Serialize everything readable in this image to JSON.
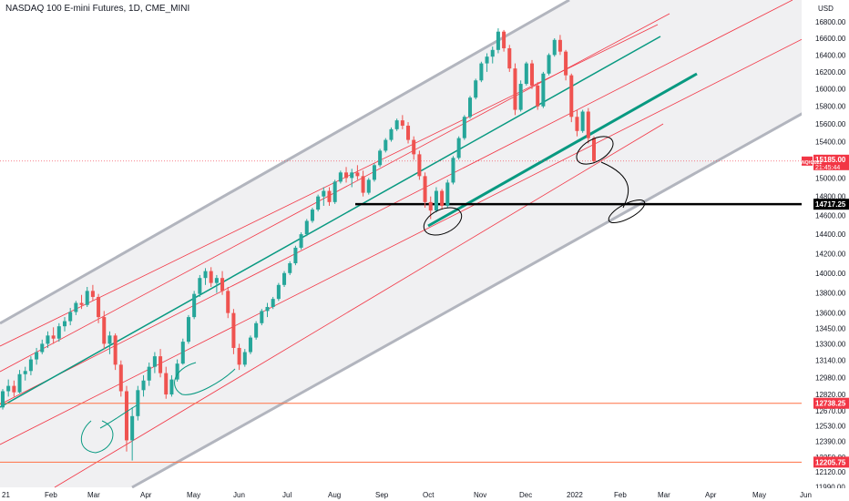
{
  "header": {
    "symbol_title": "NASDAQ 100 E-mini Futures, 1D, CME_MINI",
    "currency": "USD"
  },
  "colors": {
    "up": "#26a69a",
    "down": "#ef5350",
    "channel_outer": "#b2b5be",
    "channel_inner": "#f23645",
    "midline": "#089981",
    "horizontal_red": "#ff7043",
    "support_line": "#000000",
    "price_tag": "#f23645",
    "level_tag_dark": "#000000",
    "level_tag_red": "#f23645",
    "drawing": "#000000",
    "drawing_teal": "#089981"
  },
  "chart_data": {
    "type": "candlestick",
    "x_labels": [
      "21",
      "Feb",
      "Mar",
      "Apr",
      "May",
      "Jun",
      "Jul",
      "Aug",
      "Sep",
      "Oct",
      "Nov",
      "Dec",
      "2022",
      "Feb",
      "Mar",
      "Apr",
      "May",
      "Jun"
    ],
    "y_ticks": [
      "16800.00",
      "16600.00",
      "16400.00",
      "16200.00",
      "16000.00",
      "15800.00",
      "15600.00",
      "15400.00",
      "15000.00",
      "14800.00",
      "14600.00",
      "14400.00",
      "14200.00",
      "14000.00",
      "13800.00",
      "13600.00",
      "13450.00",
      "13300.00",
      "13140.00",
      "12980.00",
      "12820.00",
      "12670.00",
      "12530.00",
      "12390.00",
      "12250.00",
      "12120.00",
      "11990.00"
    ],
    "ylim": [
      11990,
      17000
    ],
    "y_scale": "log",
    "last_price": {
      "symbol": "NQH2022",
      "value": "15185.00",
      "countdown": "21:45:44"
    },
    "levels": [
      {
        "name": "support",
        "value": "14717.25"
      },
      {
        "name": "horizontal-1",
        "value": "12738.25"
      },
      {
        "name": "horizontal-2",
        "value": "12205.75"
      }
    ],
    "candles": [
      [
        12700,
        12870,
        12680,
        12850
      ],
      [
        12850,
        12960,
        12800,
        12900
      ],
      [
        12900,
        12950,
        12800,
        12840
      ],
      [
        12840,
        13050,
        12830,
        13010
      ],
      [
        13010,
        13080,
        12950,
        13040
      ],
      [
        13040,
        13180,
        13000,
        13150
      ],
      [
        13150,
        13260,
        13100,
        13220
      ],
      [
        13220,
        13340,
        13200,
        13300
      ],
      [
        13300,
        13420,
        13260,
        13380
      ],
      [
        13380,
        13460,
        13300,
        13350
      ],
      [
        13350,
        13500,
        13320,
        13470
      ],
      [
        13470,
        13560,
        13420,
        13520
      ],
      [
        13520,
        13650,
        13480,
        13610
      ],
      [
        13610,
        13720,
        13580,
        13700
      ],
      [
        13700,
        13780,
        13640,
        13680
      ],
      [
        13680,
        13860,
        13660,
        13820
      ],
      [
        13820,
        13880,
        13720,
        13760
      ],
      [
        13760,
        13790,
        13500,
        13560
      ],
      [
        13560,
        13620,
        13250,
        13300
      ],
      [
        13300,
        13420,
        13200,
        13380
      ],
      [
        13380,
        13400,
        13050,
        13100
      ],
      [
        13100,
        13140,
        12800,
        12850
      ],
      [
        12850,
        12900,
        12300,
        12400
      ],
      [
        12400,
        12700,
        12220,
        12620
      ],
      [
        12620,
        12900,
        12580,
        12860
      ],
      [
        12860,
        13000,
        12800,
        12950
      ],
      [
        12950,
        13120,
        12900,
        13080
      ],
      [
        13080,
        13220,
        13020,
        13180
      ],
      [
        13180,
        13250,
        12980,
        13020
      ],
      [
        13020,
        13080,
        12780,
        12820
      ],
      [
        12820,
        13000,
        12800,
        12960
      ],
      [
        12960,
        13150,
        12940,
        13110
      ],
      [
        13110,
        13350,
        13100,
        13320
      ],
      [
        13320,
        13580,
        13300,
        13560
      ],
      [
        13560,
        13820,
        13540,
        13790
      ],
      [
        13790,
        13980,
        13760,
        13950
      ],
      [
        13950,
        14050,
        13880,
        14020
      ],
      [
        14020,
        14060,
        13860,
        13900
      ],
      [
        13900,
        13980,
        13800,
        13950
      ],
      [
        13950,
        14020,
        13780,
        13820
      ],
      [
        13820,
        13860,
        13550,
        13600
      ],
      [
        13600,
        13640,
        13200,
        13260
      ],
      [
        13260,
        13300,
        13050,
        13100
      ],
      [
        13100,
        13250,
        13080,
        13220
      ],
      [
        13220,
        13380,
        13200,
        13360
      ],
      [
        13360,
        13520,
        13340,
        13500
      ],
      [
        13500,
        13640,
        13480,
        13620
      ],
      [
        13620,
        13700,
        13560,
        13660
      ],
      [
        13660,
        13760,
        13640,
        13740
      ],
      [
        13740,
        13900,
        13720,
        13880
      ],
      [
        13880,
        14020,
        13860,
        14000
      ],
      [
        14000,
        14120,
        13980,
        14100
      ],
      [
        14100,
        14280,
        14080,
        14260
      ],
      [
        14260,
        14420,
        14240,
        14400
      ],
      [
        14400,
        14560,
        14380,
        14540
      ],
      [
        14540,
        14680,
        14520,
        14660
      ],
      [
        14660,
        14820,
        14640,
        14800
      ],
      [
        14800,
        14900,
        14700,
        14860
      ],
      [
        14860,
        14900,
        14700,
        14740
      ],
      [
        14740,
        14980,
        14720,
        14960
      ],
      [
        14960,
        15080,
        14940,
        15060
      ],
      [
        15060,
        15120,
        14950,
        15000
      ],
      [
        15000,
        15100,
        14900,
        15060
      ],
      [
        15060,
        15140,
        14980,
        15020
      ],
      [
        15020,
        15080,
        14800,
        14840
      ],
      [
        14840,
        15000,
        14820,
        14980
      ],
      [
        14980,
        15160,
        14960,
        15140
      ],
      [
        15140,
        15320,
        15120,
        15300
      ],
      [
        15300,
        15440,
        15280,
        15420
      ],
      [
        15420,
        15560,
        15400,
        15540
      ],
      [
        15540,
        15660,
        15520,
        15640
      ],
      [
        15640,
        15700,
        15540,
        15580
      ],
      [
        15580,
        15620,
        15380,
        15420
      ],
      [
        15420,
        15460,
        15200,
        15260
      ],
      [
        15260,
        15300,
        14980,
        15020
      ],
      [
        15020,
        15060,
        14680,
        14740
      ],
      [
        14740,
        14800,
        14560,
        14650
      ],
      [
        14650,
        14900,
        14630,
        14860
      ],
      [
        14860,
        14880,
        14660,
        14700
      ],
      [
        14700,
        14980,
        14680,
        14950
      ],
      [
        14950,
        15240,
        14930,
        15220
      ],
      [
        15220,
        15460,
        15200,
        15440
      ],
      [
        15440,
        15700,
        15420,
        15680
      ],
      [
        15680,
        15920,
        15660,
        15900
      ],
      [
        15900,
        16120,
        15880,
        16100
      ],
      [
        16100,
        16320,
        16080,
        16300
      ],
      [
        16300,
        16420,
        16200,
        16380
      ],
      [
        16380,
        16500,
        16300,
        16460
      ],
      [
        16460,
        16720,
        16420,
        16680
      ],
      [
        16680,
        16700,
        16440,
        16480
      ],
      [
        16480,
        16520,
        16200,
        16240
      ],
      [
        16240,
        16300,
        15700,
        15760
      ],
      [
        15760,
        16100,
        15740,
        16060
      ],
      [
        16060,
        16320,
        16040,
        16300
      ],
      [
        16300,
        16340,
        16000,
        16040
      ],
      [
        16040,
        16080,
        15760,
        15800
      ],
      [
        15800,
        16200,
        15780,
        16180
      ],
      [
        16180,
        16420,
        16160,
        16400
      ],
      [
        16400,
        16600,
        16380,
        16580
      ],
      [
        16580,
        16640,
        16400,
        16440
      ],
      [
        16440,
        16460,
        16100,
        16160
      ],
      [
        16160,
        16180,
        15620,
        15680
      ],
      [
        15680,
        15760,
        15460,
        15520
      ],
      [
        15520,
        15760,
        15500,
        15740
      ],
      [
        15740,
        15780,
        15380,
        15440
      ],
      [
        15440,
        15460,
        15160,
        15185
      ]
    ]
  }
}
